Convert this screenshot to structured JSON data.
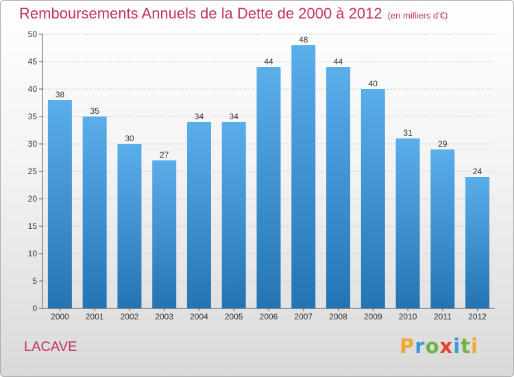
{
  "title": "Remboursements Annuels de la Dette de 2000 à 2012",
  "subtitle": "(en milliers d'€)",
  "commune": "LACAVE",
  "logo": {
    "text": "Proxiti",
    "letters": [
      {
        "ch": "P",
        "color": "#f0a72d"
      },
      {
        "ch": "r",
        "color": "#3b9ad9"
      },
      {
        "ch": "o",
        "color": "#6ab344"
      },
      {
        "ch": "x",
        "color": "#e5412e"
      },
      {
        "ch": "i",
        "color": "#3b9ad9"
      },
      {
        "ch": "t",
        "color": "#6ab344"
      },
      {
        "ch": "i",
        "color": "#f0a72d"
      }
    ]
  },
  "colors": {
    "title": "#c2306a",
    "bar_top": "#5aaeea",
    "bar_bottom": "#2474b4",
    "grid": "#c8c8c8"
  },
  "chart_data": {
    "type": "bar",
    "categories": [
      "2000",
      "2001",
      "2002",
      "2003",
      "2004",
      "2005",
      "2006",
      "2007",
      "2008",
      "2009",
      "2010",
      "2011",
      "2012"
    ],
    "values": [
      38,
      35,
      30,
      27,
      34,
      34,
      44,
      48,
      44,
      40,
      31,
      29,
      24
    ],
    "ylim": [
      0,
      50
    ],
    "yticks": [
      0,
      5,
      10,
      15,
      20,
      25,
      30,
      35,
      40,
      45,
      50
    ],
    "grid": true,
    "data_labels": true
  }
}
